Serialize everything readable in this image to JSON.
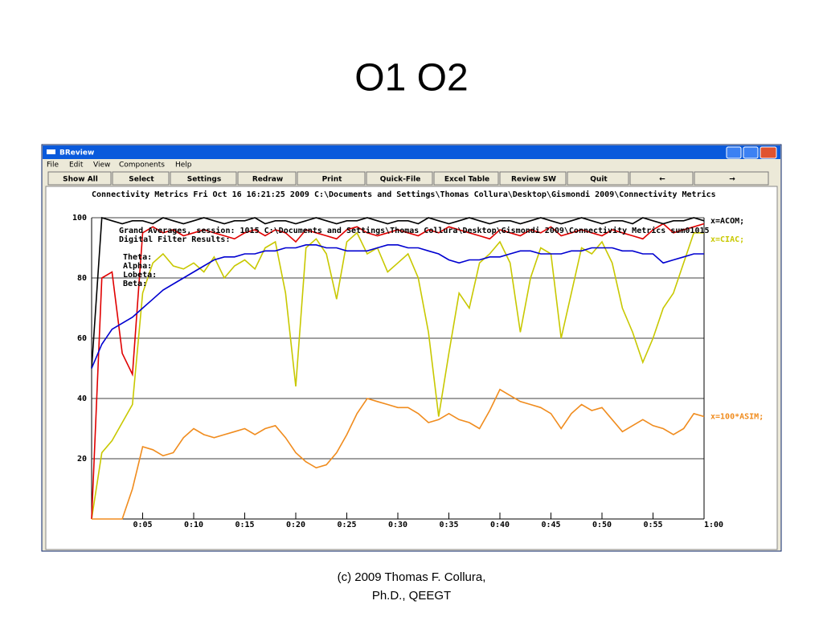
{
  "slide": {
    "title": "O1 O2",
    "footer": [
      "(c) 2009 Thomas F. Collura,",
      "Ph.D., QEEGT"
    ]
  },
  "window": {
    "title": "BReview",
    "menu": [
      "File",
      "Edit",
      "View",
      "Components",
      "Help"
    ],
    "buttons": [
      "Show All",
      "Select",
      "Settings",
      "Redraw",
      "Print",
      "Quick-File",
      "Excel Table",
      "Review SW",
      "Quit",
      "←",
      "→"
    ],
    "header": "Connectivity Metrics   Fri Oct 16 16:21:25 2009   C:\\Documents and Settings\\Thomas Collura\\Desktop\\Gismondi 2009\\Connectivity Metrics",
    "overlay": [
      "Grand Averages, session: 1015 C:\\Documents and Settings\\Thomas Collura\\Desktop\\Gismondi 2009\\Connectivity Metrics sum01015",
      "Digital Filter Results:"
    ],
    "bands": [
      "Theta:",
      "Alpha:",
      "Lobeta:",
      "Beta:"
    ]
  },
  "chart_data": {
    "type": "line",
    "x": [
      0,
      1,
      2,
      3,
      4,
      5,
      6,
      7,
      8,
      9,
      10,
      11,
      12,
      13,
      14,
      15,
      16,
      17,
      18,
      19,
      20,
      21,
      22,
      23,
      24,
      25,
      26,
      27,
      28,
      29,
      30,
      31,
      32,
      33,
      34,
      35,
      36,
      37,
      38,
      39,
      40,
      41,
      42,
      43,
      44,
      45,
      46,
      47,
      48,
      49,
      50,
      51,
      52,
      53,
      54,
      55,
      56,
      57,
      58,
      59,
      60
    ],
    "xlim": [
      0,
      60
    ],
    "xticks": [
      {
        "value": 5,
        "label": "0:05"
      },
      {
        "value": 10,
        "label": "0:10"
      },
      {
        "value": 15,
        "label": "0:15"
      },
      {
        "value": 20,
        "label": "0:20"
      },
      {
        "value": 25,
        "label": "0:25"
      },
      {
        "value": 30,
        "label": "0:30"
      },
      {
        "value": 35,
        "label": "0:35"
      },
      {
        "value": 40,
        "label": "0:40"
      },
      {
        "value": 45,
        "label": "0:45"
      },
      {
        "value": 50,
        "label": "0:50"
      },
      {
        "value": 55,
        "label": "0:55"
      },
      {
        "value": 60,
        "label": "1:00"
      }
    ],
    "ylim": [
      0,
      100
    ],
    "yticks": [
      20,
      40,
      60,
      80,
      100
    ],
    "grid": true,
    "series": [
      {
        "name": "x=ACOM;",
        "color": "#000000",
        "values": [
          50,
          100,
          99,
          98,
          99,
          99,
          98,
          100,
          99,
          98,
          99,
          100,
          99,
          98,
          99,
          99,
          100,
          98,
          99,
          99,
          98,
          99,
          100,
          99,
          98,
          99,
          99,
          100,
          99,
          98,
          99,
          99,
          98,
          100,
          99,
          98,
          99,
          100,
          99,
          98,
          99,
          99,
          98,
          99,
          100,
          99,
          98,
          99,
          100,
          99,
          98,
          99,
          99,
          98,
          100,
          99,
          98,
          99,
          99,
          100,
          99
        ]
      },
      {
        "color": "#e00000",
        "values": [
          0,
          80,
          82,
          55,
          48,
          95,
          97,
          95,
          96,
          94,
          95,
          96,
          95,
          94,
          93,
          95,
          96,
          94,
          96,
          95,
          92,
          96,
          95,
          94,
          93,
          96,
          97,
          95,
          94,
          95,
          96,
          95,
          94,
          96,
          95,
          97,
          96,
          95,
          94,
          93,
          96,
          95,
          94,
          96,
          95,
          97,
          94,
          95,
          96,
          95,
          94,
          96,
          95,
          94,
          93,
          96,
          98,
          95,
          96,
          97,
          98
        ]
      },
      {
        "name": "x=CIAC;",
        "color": "#c8c800",
        "values": [
          0,
          22,
          26,
          32,
          38,
          75,
          85,
          88,
          84,
          83,
          85,
          82,
          87,
          80,
          84,
          86,
          83,
          90,
          92,
          75,
          44,
          90,
          93,
          88,
          73,
          92,
          95,
          88,
          90,
          82,
          85,
          88,
          80,
          62,
          34,
          55,
          75,
          70,
          85,
          88,
          92,
          85,
          62,
          80,
          90,
          88,
          60,
          75,
          90,
          88,
          92,
          85,
          70,
          62,
          52,
          60,
          70,
          75,
          85,
          95,
          95
        ]
      },
      {
        "color": "#0000d0",
        "values": [
          50,
          58,
          63,
          65,
          67,
          70,
          73,
          76,
          78,
          80,
          82,
          84,
          86,
          87,
          87,
          88,
          88,
          89,
          89,
          90,
          90,
          91,
          91,
          90,
          90,
          89,
          89,
          89,
          90,
          91,
          91,
          90,
          90,
          89,
          88,
          86,
          85,
          86,
          86,
          87,
          87,
          88,
          89,
          89,
          88,
          88,
          88,
          89,
          89,
          90,
          90,
          90,
          89,
          89,
          88,
          88,
          85,
          86,
          87,
          88,
          88
        ]
      },
      {
        "name": "x=100*ASIM;",
        "color": "#f08c1e",
        "values": [
          0,
          0,
          0,
          0,
          10,
          24,
          23,
          21,
          22,
          27,
          30,
          28,
          27,
          28,
          29,
          30,
          28,
          30,
          31,
          27,
          22,
          19,
          17,
          18,
          22,
          28,
          35,
          40,
          39,
          38,
          37,
          37,
          35,
          32,
          33,
          35,
          33,
          32,
          30,
          36,
          43,
          41,
          39,
          38,
          37,
          35,
          30,
          35,
          38,
          36,
          37,
          33,
          29,
          31,
          33,
          31,
          30,
          28,
          30,
          35,
          34
        ]
      }
    ]
  }
}
